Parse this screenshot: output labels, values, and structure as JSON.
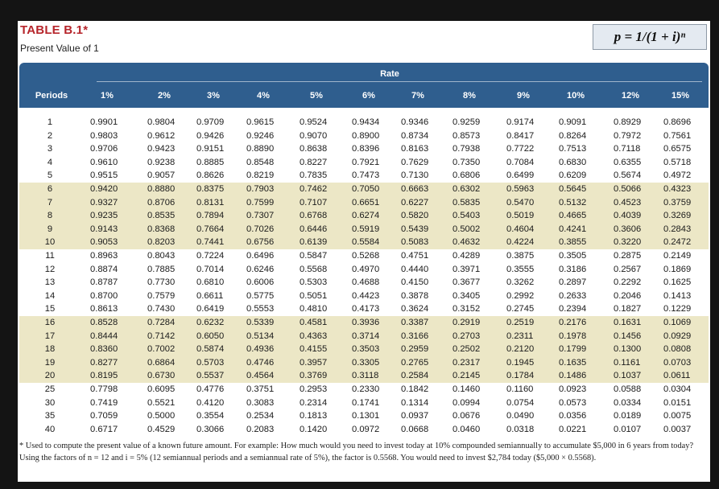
{
  "header": {
    "title": "TABLE B.1*",
    "subtitle": "Present Value of 1",
    "formula": "p = 1/(1 + i)ⁿ"
  },
  "table": {
    "rate_label": "Rate",
    "periods_label": "Periods",
    "rates": [
      "1%",
      "2%",
      "3%",
      "4%",
      "5%",
      "6%",
      "7%",
      "8%",
      "9%",
      "10%",
      "12%",
      "15%"
    ],
    "rows": [
      {
        "p": "1",
        "v": [
          "0.9901",
          "0.9804",
          "0.9709",
          "0.9615",
          "0.9524",
          "0.9434",
          "0.9346",
          "0.9259",
          "0.9174",
          "0.9091",
          "0.8929",
          "0.8696"
        ]
      },
      {
        "p": "2",
        "v": [
          "0.9803",
          "0.9612",
          "0.9426",
          "0.9246",
          "0.9070",
          "0.8900",
          "0.8734",
          "0.8573",
          "0.8417",
          "0.8264",
          "0.7972",
          "0.7561"
        ]
      },
      {
        "p": "3",
        "v": [
          "0.9706",
          "0.9423",
          "0.9151",
          "0.8890",
          "0.8638",
          "0.8396",
          "0.8163",
          "0.7938",
          "0.7722",
          "0.7513",
          "0.7118",
          "0.6575"
        ]
      },
      {
        "p": "4",
        "v": [
          "0.9610",
          "0.9238",
          "0.8885",
          "0.8548",
          "0.8227",
          "0.7921",
          "0.7629",
          "0.7350",
          "0.7084",
          "0.6830",
          "0.6355",
          "0.5718"
        ]
      },
      {
        "p": "5",
        "v": [
          "0.9515",
          "0.9057",
          "0.8626",
          "0.8219",
          "0.7835",
          "0.7473",
          "0.7130",
          "0.6806",
          "0.6499",
          "0.6209",
          "0.5674",
          "0.4972"
        ]
      },
      {
        "p": "6",
        "v": [
          "0.9420",
          "0.8880",
          "0.8375",
          "0.7903",
          "0.7462",
          "0.7050",
          "0.6663",
          "0.6302",
          "0.5963",
          "0.5645",
          "0.5066",
          "0.4323"
        ]
      },
      {
        "p": "7",
        "v": [
          "0.9327",
          "0.8706",
          "0.8131",
          "0.7599",
          "0.7107",
          "0.6651",
          "0.6227",
          "0.5835",
          "0.5470",
          "0.5132",
          "0.4523",
          "0.3759"
        ]
      },
      {
        "p": "8",
        "v": [
          "0.9235",
          "0.8535",
          "0.7894",
          "0.7307",
          "0.6768",
          "0.6274",
          "0.5820",
          "0.5403",
          "0.5019",
          "0.4665",
          "0.4039",
          "0.3269"
        ]
      },
      {
        "p": "9",
        "v": [
          "0.9143",
          "0.8368",
          "0.7664",
          "0.7026",
          "0.6446",
          "0.5919",
          "0.5439",
          "0.5002",
          "0.4604",
          "0.4241",
          "0.3606",
          "0.2843"
        ]
      },
      {
        "p": "10",
        "v": [
          "0.9053",
          "0.8203",
          "0.7441",
          "0.6756",
          "0.6139",
          "0.5584",
          "0.5083",
          "0.4632",
          "0.4224",
          "0.3855",
          "0.3220",
          "0.2472"
        ]
      },
      {
        "p": "11",
        "v": [
          "0.8963",
          "0.8043",
          "0.7224",
          "0.6496",
          "0.5847",
          "0.5268",
          "0.4751",
          "0.4289",
          "0.3875",
          "0.3505",
          "0.2875",
          "0.2149"
        ]
      },
      {
        "p": "12",
        "v": [
          "0.8874",
          "0.7885",
          "0.7014",
          "0.6246",
          "0.5568",
          "0.4970",
          "0.4440",
          "0.3971",
          "0.3555",
          "0.3186",
          "0.2567",
          "0.1869"
        ]
      },
      {
        "p": "13",
        "v": [
          "0.8787",
          "0.7730",
          "0.6810",
          "0.6006",
          "0.5303",
          "0.4688",
          "0.4150",
          "0.3677",
          "0.3262",
          "0.2897",
          "0.2292",
          "0.1625"
        ]
      },
      {
        "p": "14",
        "v": [
          "0.8700",
          "0.7579",
          "0.6611",
          "0.5775",
          "0.5051",
          "0.4423",
          "0.3878",
          "0.3405",
          "0.2992",
          "0.2633",
          "0.2046",
          "0.1413"
        ]
      },
      {
        "p": "15",
        "v": [
          "0.8613",
          "0.7430",
          "0.6419",
          "0.5553",
          "0.4810",
          "0.4173",
          "0.3624",
          "0.3152",
          "0.2745",
          "0.2394",
          "0.1827",
          "0.1229"
        ]
      },
      {
        "p": "16",
        "v": [
          "0.8528",
          "0.7284",
          "0.6232",
          "0.5339",
          "0.4581",
          "0.3936",
          "0.3387",
          "0.2919",
          "0.2519",
          "0.2176",
          "0.1631",
          "0.1069"
        ]
      },
      {
        "p": "17",
        "v": [
          "0.8444",
          "0.7142",
          "0.6050",
          "0.5134",
          "0.4363",
          "0.3714",
          "0.3166",
          "0.2703",
          "0.2311",
          "0.1978",
          "0.1456",
          "0.0929"
        ]
      },
      {
        "p": "18",
        "v": [
          "0.8360",
          "0.7002",
          "0.5874",
          "0.4936",
          "0.4155",
          "0.3503",
          "0.2959",
          "0.2502",
          "0.2120",
          "0.1799",
          "0.1300",
          "0.0808"
        ]
      },
      {
        "p": "19",
        "v": [
          "0.8277",
          "0.6864",
          "0.5703",
          "0.4746",
          "0.3957",
          "0.3305",
          "0.2765",
          "0.2317",
          "0.1945",
          "0.1635",
          "0.1161",
          "0.0703"
        ]
      },
      {
        "p": "20",
        "v": [
          "0.8195",
          "0.6730",
          "0.5537",
          "0.4564",
          "0.3769",
          "0.3118",
          "0.2584",
          "0.2145",
          "0.1784",
          "0.1486",
          "0.1037",
          "0.0611"
        ]
      },
      {
        "p": "25",
        "v": [
          "0.7798",
          "0.6095",
          "0.4776",
          "0.3751",
          "0.2953",
          "0.2330",
          "0.1842",
          "0.1460",
          "0.1160",
          "0.0923",
          "0.0588",
          "0.0304"
        ]
      },
      {
        "p": "30",
        "v": [
          "0.7419",
          "0.5521",
          "0.4120",
          "0.3083",
          "0.2314",
          "0.1741",
          "0.1314",
          "0.0994",
          "0.0754",
          "0.0573",
          "0.0334",
          "0.0151"
        ]
      },
      {
        "p": "35",
        "v": [
          "0.7059",
          "0.5000",
          "0.3554",
          "0.2534",
          "0.1813",
          "0.1301",
          "0.0937",
          "0.0676",
          "0.0490",
          "0.0356",
          "0.0189",
          "0.0075"
        ]
      },
      {
        "p": "40",
        "v": [
          "0.6717",
          "0.4529",
          "0.3066",
          "0.2083",
          "0.1420",
          "0.0972",
          "0.0668",
          "0.0460",
          "0.0318",
          "0.0221",
          "0.0107",
          "0.0037"
        ]
      }
    ]
  },
  "footnote": "* Used to compute the present value of a known future amount. For example: How much would you need to invest today at 10% compounded semiannually to accumulate $5,000 in 6 years from today? Using the factors of n = 12 and i = 5% (12 semiannual periods and a semiannual rate of 5%), the factor is 0.5568. You would need to invest $2,784 today ($5,000 × 0.5568).",
  "colors": {
    "title_red": "#b6252b",
    "header_blue": "#2f5e8e",
    "band_tan": "#ece7c6"
  }
}
